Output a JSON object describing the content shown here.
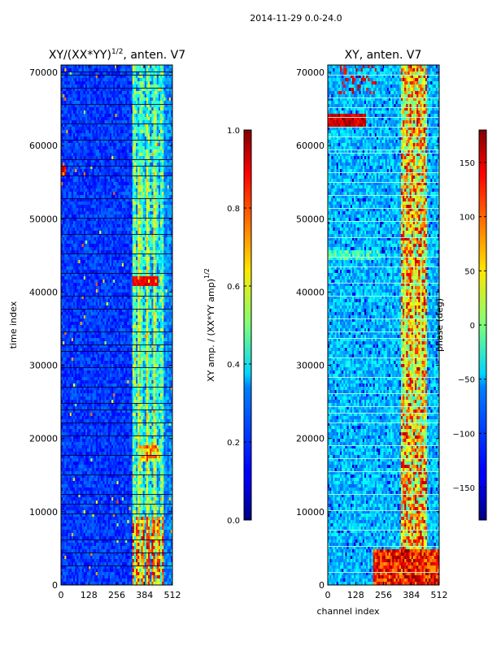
{
  "suptitle": "2014-11-29 0.0-24.0",
  "chart_data": [
    {
      "type": "heatmap",
      "title_base": "XY/(XX*YY)",
      "title_sup": "1/2",
      "title_rest": ", anten. V7",
      "ylabel": "time index",
      "xlabel": "",
      "x_ticks": [
        0,
        128,
        256,
        384,
        512
      ],
      "y_ticks": [
        0,
        10000,
        20000,
        30000,
        40000,
        50000,
        60000,
        70000
      ],
      "xlim": [
        0,
        512
      ],
      "ylim": [
        0,
        71000
      ],
      "colorbar": {
        "label_base": "XY amp. / (XX*YY amp)",
        "label_sup": "1/2",
        "ticks": [
          "0.0",
          "0.2",
          "0.4",
          "0.6",
          "0.8",
          "1.0"
        ],
        "range": [
          0,
          1
        ]
      }
    },
    {
      "type": "heatmap",
      "title": "XY, anten. V7",
      "xlabel": "channel index",
      "ylabel": "",
      "x_ticks": [
        0,
        128,
        256,
        384,
        512
      ],
      "y_ticks": [
        0,
        10000,
        20000,
        30000,
        40000,
        50000,
        60000,
        70000
      ],
      "xlim": [
        0,
        512
      ],
      "ylim": [
        0,
        71000
      ],
      "colorbar": {
        "label": "phase (deg)",
        "ticks": [
          "−150",
          "−100",
          "−50",
          "0",
          "50",
          "100",
          "150"
        ],
        "range": [
          -180,
          180
        ]
      }
    }
  ]
}
